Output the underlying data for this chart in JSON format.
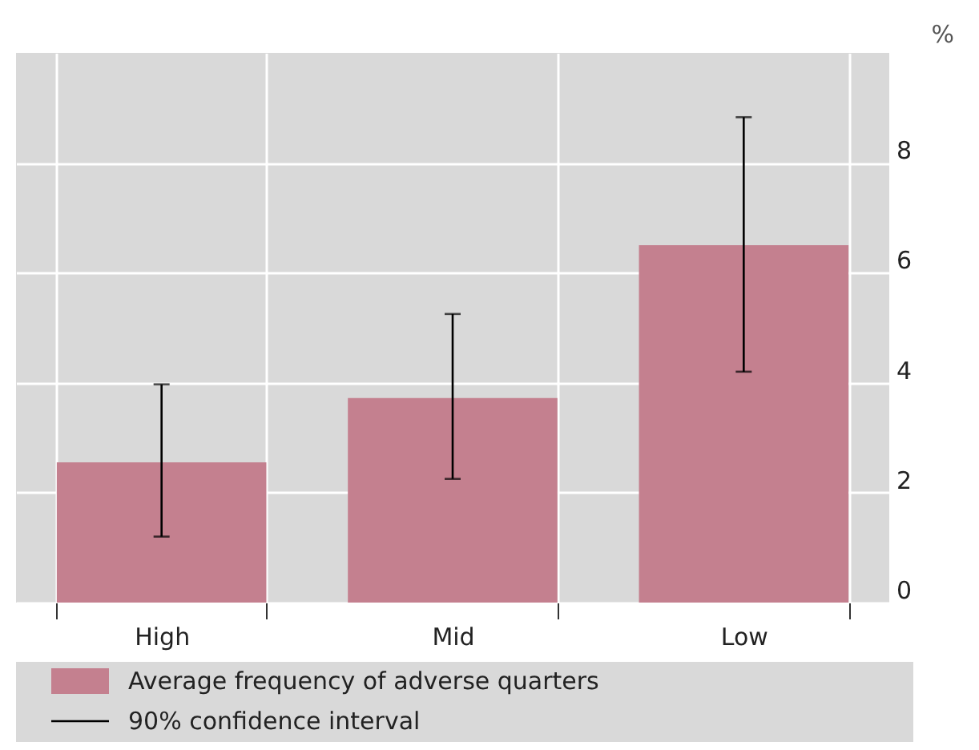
{
  "chart_data": {
    "type": "bar",
    "ylabel": "%",
    "categories": [
      "High",
      "Mid",
      "Low"
    ],
    "series": [
      {
        "name": "Average frequency of adverse quarters",
        "color": "#c4808f",
        "values": [
          2.55,
          3.72,
          6.5
        ],
        "errors": [
          [
            1.2,
            3.97
          ],
          [
            2.25,
            5.25
          ],
          [
            4.2,
            8.83
          ]
        ]
      }
    ],
    "annotations": [
      "90% confidence interval"
    ],
    "ylim": [
      0,
      10
    ],
    "yticks": [
      0,
      2,
      4,
      6,
      8
    ],
    "grid": true,
    "legend": "bottom"
  }
}
